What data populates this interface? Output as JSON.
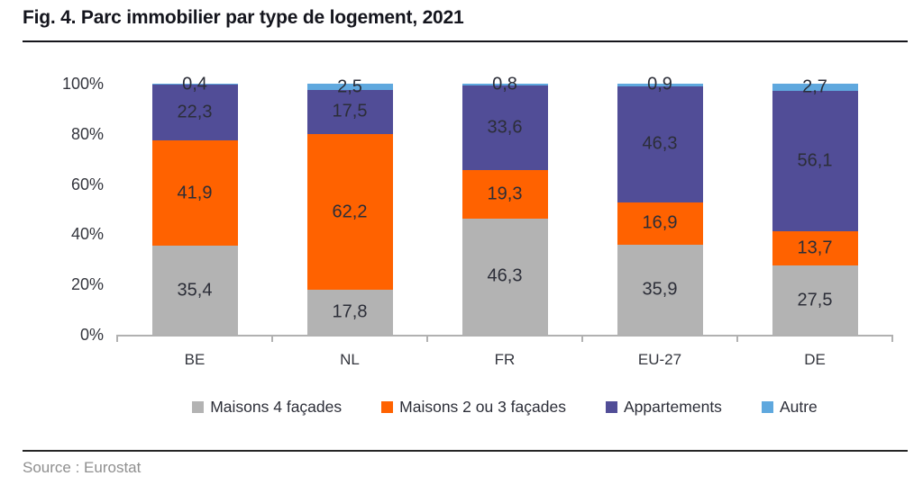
{
  "figure": {
    "title": "Fig. 4. Parc immobilier par type de logement, 2021",
    "source": "Source : Eurostat"
  },
  "chart_data": {
    "type": "bar",
    "stacked": true,
    "orientation": "vertical",
    "title": "Fig. 4. Parc immobilier par type de logement, 2021",
    "categories": [
      "BE",
      "NL",
      "FR",
      "EU-27",
      "DE"
    ],
    "series": [
      {
        "name": "Maisons 4 façades",
        "color": "#b3b3b3",
        "values": [
          35.4,
          17.8,
          46.3,
          35.9,
          27.5
        ]
      },
      {
        "name": "Maisons 2 ou 3 façades",
        "color": "#ff6200",
        "values": [
          41.9,
          62.2,
          19.3,
          16.9,
          13.7
        ]
      },
      {
        "name": "Appartements",
        "color": "#514d97",
        "values": [
          22.3,
          17.5,
          33.6,
          46.3,
          56.1
        ]
      },
      {
        "name": "Autre",
        "color": "#5fa8de",
        "values": [
          0.4,
          2.5,
          0.8,
          0.9,
          2.7
        ]
      }
    ],
    "xlabel": "",
    "ylabel": "",
    "ylim": [
      0,
      100
    ],
    "y_tick_values": [
      0,
      20,
      40,
      60,
      80,
      100
    ],
    "y_tick_suffix": "%",
    "grid": false,
    "legend_position": "bottom",
    "value_labels": "shown-on-segments",
    "decimal_separator": ","
  }
}
